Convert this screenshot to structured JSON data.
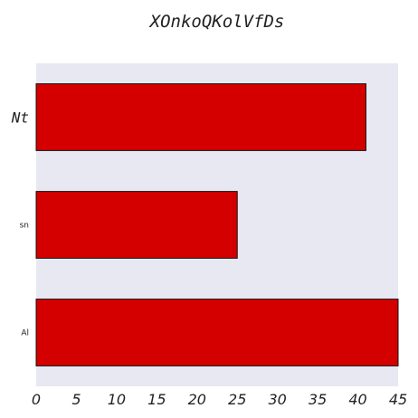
{
  "chart_data": {
    "type": "bar",
    "orientation": "horizontal",
    "title": "XOnkoQKolVfDs",
    "xlabel": "",
    "ylabel": "",
    "categories": [
      "Nt",
      "sn",
      "Al"
    ],
    "values": [
      41,
      25,
      45
    ],
    "xlim": [
      0,
      45
    ],
    "xticks": [
      0,
      5,
      10,
      15,
      20,
      25,
      30,
      35,
      40,
      45
    ],
    "grid": false,
    "colors": {
      "bar": "#d40000",
      "bar_edge": "#111111",
      "plot_background": "#e8e8f2"
    }
  }
}
